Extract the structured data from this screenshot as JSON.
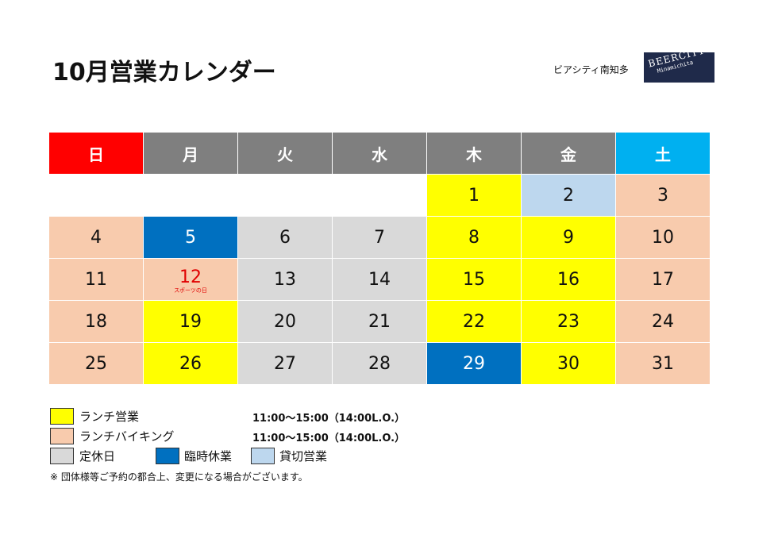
{
  "title": "10月営業カレンダー",
  "brand": {
    "name_jp": "ビアシティ南知多",
    "logo_line1": "BEERCITY",
    "logo_line2": "Minamichita"
  },
  "calendar": {
    "weekdays": [
      "日",
      "月",
      "火",
      "水",
      "木",
      "金",
      "土"
    ],
    "rows": [
      [
        {
          "day": "",
          "type": "empty"
        },
        {
          "day": "",
          "type": "empty"
        },
        {
          "day": "",
          "type": "empty"
        },
        {
          "day": "",
          "type": "empty"
        },
        {
          "day": "1",
          "type": "lunch"
        },
        {
          "day": "2",
          "type": "private"
        },
        {
          "day": "3",
          "type": "buffet"
        }
      ],
      [
        {
          "day": "4",
          "type": "buffet"
        },
        {
          "day": "5",
          "type": "temp"
        },
        {
          "day": "6",
          "type": "closed"
        },
        {
          "day": "7",
          "type": "closed"
        },
        {
          "day": "8",
          "type": "lunch"
        },
        {
          "day": "9",
          "type": "lunch"
        },
        {
          "day": "10",
          "type": "buffet"
        }
      ],
      [
        {
          "day": "11",
          "type": "buffet"
        },
        {
          "day": "12",
          "type": "buffet",
          "holiday": "スポーツの日"
        },
        {
          "day": "13",
          "type": "closed"
        },
        {
          "day": "14",
          "type": "closed"
        },
        {
          "day": "15",
          "type": "lunch"
        },
        {
          "day": "16",
          "type": "lunch"
        },
        {
          "day": "17",
          "type": "buffet"
        }
      ],
      [
        {
          "day": "18",
          "type": "buffet"
        },
        {
          "day": "19",
          "type": "lunch"
        },
        {
          "day": "20",
          "type": "closed"
        },
        {
          "day": "21",
          "type": "closed"
        },
        {
          "day": "22",
          "type": "lunch"
        },
        {
          "day": "23",
          "type": "lunch"
        },
        {
          "day": "24",
          "type": "buffet"
        }
      ],
      [
        {
          "day": "25",
          "type": "buffet"
        },
        {
          "day": "26",
          "type": "lunch"
        },
        {
          "day": "27",
          "type": "closed"
        },
        {
          "day": "28",
          "type": "closed"
        },
        {
          "day": "29",
          "type": "temp"
        },
        {
          "day": "30",
          "type": "lunch"
        },
        {
          "day": "31",
          "type": "buffet"
        }
      ]
    ]
  },
  "legend": {
    "lunch": {
      "label": "ランチ営業",
      "time": "11:00～15:00（14:00L.O.）",
      "color": "#ffff00"
    },
    "buffet": {
      "label": "ランチバイキング",
      "time": "11:00～15:00（14:00L.O.）",
      "color": "#f8cbad"
    },
    "closed": {
      "label": "定休日",
      "color": "#d9d9d9"
    },
    "temp": {
      "label": "臨時休業",
      "color": "#0070c0"
    },
    "private": {
      "label": "貸切営業",
      "color": "#bdd7ee"
    }
  },
  "note": "※ 団体様等ご予約の都合上、変更になる場合がございます。",
  "colors": {
    "sunday_header": "#ff0000",
    "weekday_header": "#7f7f7f",
    "saturday_header": "#00b0f0",
    "holiday_text": "#e00000"
  }
}
